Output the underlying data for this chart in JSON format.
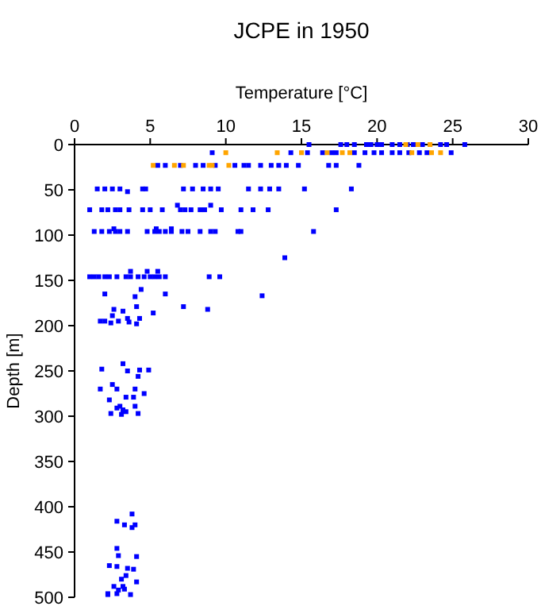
{
  "chart_data": {
    "type": "scatter",
    "title": "JCPE in 1950",
    "xlabel": "Temperature [°C]",
    "ylabel": "Depth [m]",
    "xlim": [
      0,
      30
    ],
    "xticks": [
      0,
      5,
      10,
      15,
      20,
      25,
      30
    ],
    "ylim": [
      500,
      0
    ],
    "yticks": [
      0,
      50,
      100,
      150,
      200,
      250,
      300,
      350,
      400,
      450,
      500
    ],
    "marker": "square",
    "grid": false,
    "series": [
      {
        "color": "#0000ff",
        "x": [
          15.5,
          17.6,
          18,
          18.5,
          19.3,
          19.6,
          20,
          20.3,
          21,
          21.5,
          22,
          22.4,
          23,
          23.5,
          24.2,
          24.6,
          25.8,
          9.1,
          14.3,
          15.4,
          16.4,
          17,
          17.3,
          18.5,
          19.2,
          19.8,
          20.3,
          21,
          21.5,
          22.1,
          22.8,
          23.3,
          24.9,
          5.5,
          6,
          7,
          8,
          8.5,
          9.3,
          10.6,
          11.2,
          11.5,
          12.3,
          13,
          13.5,
          14,
          14.8,
          16.8,
          17.3,
          18.8,
          1.5,
          2,
          2.5,
          3,
          3.5,
          4.5,
          4.7,
          7.2,
          7.8,
          8.5,
          9,
          9.5,
          11.5,
          12.3,
          12.9,
          13.5,
          15.2,
          18.3,
          1,
          1.8,
          2.2,
          2.7,
          3,
          3.6,
          4.5,
          5,
          5.8,
          7,
          7.3,
          7.7,
          8.3,
          8.6,
          9.7,
          11,
          11.8,
          12.8,
          17.3,
          6.8,
          9,
          1.3,
          1.8,
          2.3,
          2.7,
          3,
          3.5,
          4.8,
          5.3,
          5.6,
          6,
          6.4,
          7.1,
          7.5,
          8.3,
          9,
          9.3,
          10.8,
          11,
          15.8,
          2.6,
          5.4,
          6.4,
          13.9,
          1,
          1.3,
          1.6,
          2,
          2.3,
          2.8,
          3.4,
          3.7,
          4.2,
          4.6,
          5,
          5.3,
          5.6,
          6,
          8.9,
          9.6,
          3.7,
          4.8,
          5.5,
          2.0,
          4.0,
          4.4,
          6.0,
          12.4,
          7.2,
          8.8,
          4.1,
          2.6,
          3.2,
          5.2,
          2.5,
          3.5,
          4.3,
          1.7,
          2.4,
          2.9,
          3.6,
          4.1,
          2.0,
          3.2,
          1.8,
          4.3,
          4.9,
          3.5,
          4.2,
          2.5,
          2.8,
          1.7,
          4.0,
          4.6,
          3.4,
          3.9,
          2.3,
          2.8,
          3.0,
          3.2,
          3.4,
          4.0,
          4.2,
          2.4,
          3.1,
          3.8,
          2.8,
          3.3,
          4.0,
          3.8,
          2.8,
          2.9,
          4.1,
          2.3,
          2.8,
          3.5,
          3.9,
          3.4,
          3.1,
          4.1,
          2.6,
          3.2,
          2.9,
          3.3,
          2.2,
          2.8,
          3.7,
          2.2
        ],
        "values": [
          0,
          0,
          0,
          0,
          0,
          0,
          0,
          0,
          0,
          0,
          0,
          0,
          0,
          0,
          0,
          0,
          0,
          9,
          9,
          9,
          9,
          9,
          9,
          9,
          9,
          9,
          9,
          9,
          9,
          9,
          9,
          9,
          9,
          23,
          23,
          23,
          23,
          23,
          23,
          23,
          23,
          23,
          23,
          23,
          23,
          23,
          23,
          23,
          23,
          23,
          49,
          49,
          49,
          49,
          52,
          49,
          49,
          49,
          49,
          49,
          49,
          49,
          49,
          49,
          49,
          49,
          49,
          49,
          72,
          72,
          72,
          72,
          72,
          72,
          72,
          72,
          72,
          72,
          72,
          72,
          72,
          72,
          72,
          72,
          72,
          72,
          72,
          67,
          67,
          96,
          96,
          96,
          96,
          96,
          96,
          96,
          96,
          96,
          96,
          96,
          96,
          96,
          96,
          96,
          96,
          96,
          96,
          96,
          93,
          93,
          93,
          125,
          146,
          146,
          146,
          146,
          146,
          146,
          146,
          146,
          146,
          146,
          146,
          146,
          146,
          146,
          146,
          146,
          140,
          140,
          140,
          165,
          168,
          160,
          165,
          167,
          179,
          182,
          179,
          182,
          184,
          186,
          189,
          192,
          192,
          195,
          197,
          195,
          196,
          198,
          195,
          242,
          248,
          249,
          249,
          250,
          256,
          265,
          270,
          270,
          270,
          275,
          279,
          279,
          282,
          291,
          289,
          293,
          295,
          289,
          297,
          297,
          298,
          408,
          416,
          420,
          420,
          423,
          446,
          454,
          455,
          465,
          466,
          468,
          469,
          476,
          480,
          483,
          488,
          488,
          492,
          491,
          496,
          496,
          497,
          497
        ]
      },
      {
        "color": "#ffa500",
        "x": [
          21.9,
          22.7,
          23.5,
          10,
          13.4,
          15,
          16.7,
          17.7,
          18.2,
          22.3,
          23.6,
          24.2,
          5.2,
          6.6,
          7.2,
          8.9,
          9.1,
          10.2
        ],
        "values": [
          0,
          0,
          0,
          9,
          9,
          9,
          9,
          9,
          9,
          9,
          9,
          9,
          23,
          23,
          23,
          23,
          23,
          23
        ]
      }
    ]
  }
}
